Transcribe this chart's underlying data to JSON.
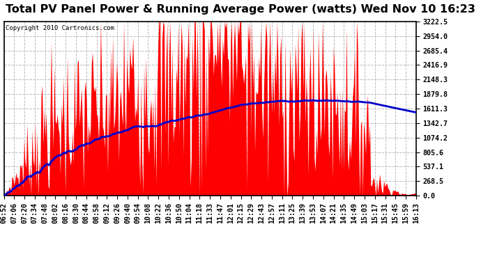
{
  "title": "Total PV Panel Power & Running Average Power (watts) Wed Nov 10 16:23",
  "copyright_text": "Copyright 2010 Cartronics.com",
  "background_color": "#ffffff",
  "plot_bg_color": "#ffffff",
  "bar_color": "#ff0000",
  "line_color": "#0000cc",
  "ytick_labels": [
    "0.0",
    "268.5",
    "537.1",
    "805.6",
    "1074.2",
    "1342.7",
    "1611.3",
    "1879.8",
    "2148.3",
    "2416.9",
    "2685.4",
    "2954.0",
    "3222.5"
  ],
  "ytick_values": [
    0.0,
    268.5,
    537.1,
    805.6,
    1074.2,
    1342.7,
    1611.3,
    1879.8,
    2148.3,
    2416.9,
    2685.4,
    2954.0,
    3222.5
  ],
  "ymax": 3222.5,
  "ymin": 0.0,
  "grid_color": "#bbbbbb",
  "grid_style": "--",
  "title_fontsize": 11.5,
  "tick_fontsize": 7.2,
  "copyright_fontsize": 6.5,
  "time_labels": [
    "06:52",
    "07:06",
    "07:20",
    "07:34",
    "07:48",
    "08:02",
    "08:16",
    "08:30",
    "08:44",
    "08:58",
    "09:12",
    "09:26",
    "09:40",
    "09:54",
    "10:08",
    "10:22",
    "10:36",
    "10:50",
    "11:04",
    "11:18",
    "11:33",
    "11:47",
    "12:01",
    "12:15",
    "12:29",
    "12:43",
    "12:57",
    "13:11",
    "13:25",
    "13:39",
    "13:53",
    "14:07",
    "14:21",
    "14:35",
    "14:49",
    "15:03",
    "15:17",
    "15:31",
    "15:45",
    "15:59",
    "16:13"
  ]
}
